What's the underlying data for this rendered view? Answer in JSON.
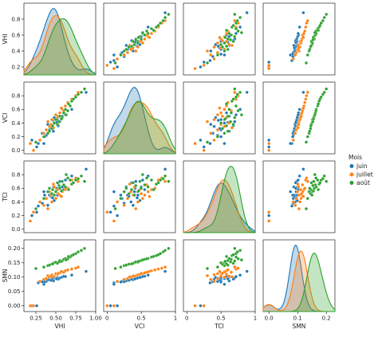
{
  "chart_data": {
    "type": "scatter",
    "subtype": "pairplot",
    "variables": [
      "VHI",
      "VCI",
      "TCI",
      "SMN"
    ],
    "axis_labels": {
      "VHI": "VHI",
      "VCI": "VCI",
      "TCI": "TCI",
      "SMN": "SMN"
    },
    "ranges": {
      "VHI": [
        0.1,
        1.0
      ],
      "VCI": [
        -0.05,
        1.0
      ],
      "TCI": [
        -0.05,
        1.0
      ],
      "SMN": [
        -0.02,
        0.23
      ]
    },
    "y_ticks": {
      "VHI": [
        "0.2",
        "0.4",
        "0.6",
        "0.8"
      ],
      "VCI": [
        "0.0",
        "0.2",
        "0.4",
        "0.6",
        "0.8"
      ],
      "TCI": [
        "0.0",
        "0.2",
        "0.4",
        "0.6",
        "0.8"
      ],
      "SMN": [
        "0.00",
        "0.05",
        "0.10",
        "0.15",
        "0.20"
      ]
    },
    "x_ticks": {
      "VHI": [
        "0.25",
        "0.50",
        "0.75",
        "1.00"
      ],
      "VCI": [
        "0",
        "0.5",
        "1"
      ],
      "TCI": [
        "0",
        "0.5",
        "1"
      ],
      "SMN": [
        "0.0",
        "0.1",
        "0.2"
      ]
    },
    "grid": false,
    "legend_position": "right",
    "legend": {
      "title": "Mois",
      "entries": [
        "juin",
        "juillet",
        "août"
      ]
    },
    "colors": {
      "juin": "#1f77b4",
      "juillet": "#ff7f0e",
      "août": "#2ca02c"
    },
    "series": [
      {
        "name": "juin",
        "points": [
          {
            "VHI": 0.2,
            "VCI": 0.15,
            "TCI": 0.2,
            "SMN": 0.0
          },
          {
            "VHI": 0.28,
            "VCI": 0.1,
            "TCI": 0.34,
            "SMN": 0.08
          },
          {
            "VHI": 0.35,
            "VCI": 0.1,
            "TCI": 0.55,
            "SMN": 0.075
          },
          {
            "VHI": 0.38,
            "VCI": 0.22,
            "TCI": 0.45,
            "SMN": 0.085
          },
          {
            "VHI": 0.42,
            "VCI": 0.3,
            "TCI": 0.5,
            "SMN": 0.09
          },
          {
            "VHI": 0.45,
            "VCI": 0.35,
            "TCI": 0.4,
            "SMN": 0.092
          },
          {
            "VHI": 0.47,
            "VCI": 0.28,
            "TCI": 0.62,
            "SMN": 0.087
          },
          {
            "VHI": 0.5,
            "VCI": 0.4,
            "TCI": 0.55,
            "SMN": 0.095
          },
          {
            "VHI": 0.52,
            "VCI": 0.45,
            "TCI": 0.5,
            "SMN": 0.098
          },
          {
            "VHI": 0.55,
            "VCI": 0.42,
            "TCI": 0.7,
            "SMN": 0.097
          },
          {
            "VHI": 0.58,
            "VCI": 0.5,
            "TCI": 0.62,
            "SMN": 0.1
          },
          {
            "VHI": 0.6,
            "VCI": 0.55,
            "TCI": 0.58,
            "SMN": 0.103
          },
          {
            "VHI": 0.4,
            "VCI": 0.38,
            "TCI": 0.35,
            "SMN": 0.091
          },
          {
            "VHI": 0.44,
            "VCI": 0.32,
            "TCI": 0.48,
            "SMN": 0.089
          },
          {
            "VHI": 0.48,
            "VCI": 0.48,
            "TCI": 0.42,
            "SMN": 0.099
          },
          {
            "VHI": 0.53,
            "VCI": 0.36,
            "TCI": 0.68,
            "SMN": 0.093
          },
          {
            "VHI": 0.36,
            "VCI": 0.2,
            "TCI": 0.5,
            "SMN": 0.083
          },
          {
            "VHI": 0.62,
            "VCI": 0.52,
            "TCI": 0.72,
            "SMN": 0.102
          },
          {
            "VHI": 0.46,
            "VCI": 0.44,
            "TCI": 0.46,
            "SMN": 0.096
          },
          {
            "VHI": 0.51,
            "VCI": 0.41,
            "TCI": 0.6,
            "SMN": 0.094
          },
          {
            "VHI": 0.88,
            "VCI": 0.85,
            "TCI": 0.88,
            "SMN": 0.12
          },
          {
            "VHI": 0.7,
            "VCI": 0.6,
            "TCI": 0.78,
            "SMN": 0.107
          },
          {
            "VHI": 0.33,
            "VCI": 0.25,
            "TCI": 0.38,
            "SMN": 0.084
          },
          {
            "VHI": 0.26,
            "VCI": 0.05,
            "TCI": 0.25,
            "SMN": 0.0
          }
        ]
      },
      {
        "name": "juillet",
        "points": [
          {
            "VHI": 0.18,
            "VCI": 0.1,
            "TCI": 0.12,
            "SMN": 0.0
          },
          {
            "VHI": 0.3,
            "VCI": 0.15,
            "TCI": 0.4,
            "SMN": 0.085
          },
          {
            "VHI": 0.35,
            "VCI": 0.25,
            "TCI": 0.35,
            "SMN": 0.092
          },
          {
            "VHI": 0.38,
            "VCI": 0.3,
            "TCI": 0.45,
            "SMN": 0.095
          },
          {
            "VHI": 0.4,
            "VCI": 0.42,
            "TCI": 0.3,
            "SMN": 0.105
          },
          {
            "VHI": 0.42,
            "VCI": 0.35,
            "TCI": 0.55,
            "SMN": 0.1
          },
          {
            "VHI": 0.45,
            "VCI": 0.45,
            "TCI": 0.4,
            "SMN": 0.108
          },
          {
            "VHI": 0.48,
            "VCI": 0.4,
            "TCI": 0.62,
            "SMN": 0.103
          },
          {
            "VHI": 0.5,
            "VCI": 0.52,
            "TCI": 0.45,
            "SMN": 0.112
          },
          {
            "VHI": 0.52,
            "VCI": 0.48,
            "TCI": 0.58,
            "SMN": 0.11
          },
          {
            "VHI": 0.55,
            "VCI": 0.55,
            "TCI": 0.5,
            "SMN": 0.115
          },
          {
            "VHI": 0.58,
            "VCI": 0.6,
            "TCI": 0.55,
            "SMN": 0.118
          },
          {
            "VHI": 0.6,
            "VCI": 0.58,
            "TCI": 0.65,
            "SMN": 0.117
          },
          {
            "VHI": 0.62,
            "VCI": 0.65,
            "TCI": 0.58,
            "SMN": 0.122
          },
          {
            "VHI": 0.65,
            "VCI": 0.7,
            "TCI": 0.6,
            "SMN": 0.125
          },
          {
            "VHI": 0.7,
            "VCI": 0.75,
            "TCI": 0.72,
            "SMN": 0.128
          },
          {
            "VHI": 0.75,
            "VCI": 0.8,
            "TCI": 0.75,
            "SMN": 0.131
          },
          {
            "VHI": 0.78,
            "VCI": 0.85,
            "TCI": 0.7,
            "SMN": 0.135
          },
          {
            "VHI": 0.44,
            "VCI": 0.38,
            "TCI": 0.5,
            "SMN": 0.104
          },
          {
            "VHI": 0.53,
            "VCI": 0.5,
            "TCI": 0.52,
            "SMN": 0.113
          },
          {
            "VHI": 0.57,
            "VCI": 0.62,
            "TCI": 0.48,
            "SMN": 0.12
          },
          {
            "VHI": 0.47,
            "VCI": 0.33,
            "TCI": 0.66,
            "SMN": 0.101
          },
          {
            "VHI": 0.22,
            "VCI": 0.0,
            "TCI": 0.25,
            "SMN": 0.0
          }
        ]
      },
      {
        "name": "août",
        "points": [
          {
            "VHI": 0.25,
            "VCI": 0.12,
            "TCI": 0.3,
            "SMN": 0.13
          },
          {
            "VHI": 0.35,
            "VCI": 0.2,
            "TCI": 0.45,
            "SMN": 0.135
          },
          {
            "VHI": 0.4,
            "VCI": 0.25,
            "TCI": 0.55,
            "SMN": 0.14
          },
          {
            "VHI": 0.45,
            "VCI": 0.32,
            "TCI": 0.52,
            "SMN": 0.145
          },
          {
            "VHI": 0.48,
            "VCI": 0.4,
            "TCI": 0.5,
            "SMN": 0.15
          },
          {
            "VHI": 0.5,
            "VCI": 0.45,
            "TCI": 0.55,
            "SMN": 0.152
          },
          {
            "VHI": 0.52,
            "VCI": 0.38,
            "TCI": 0.68,
            "SMN": 0.148
          },
          {
            "VHI": 0.55,
            "VCI": 0.5,
            "TCI": 0.6,
            "SMN": 0.158
          },
          {
            "VHI": 0.58,
            "VCI": 0.48,
            "TCI": 0.7,
            "SMN": 0.156
          },
          {
            "VHI": 0.6,
            "VCI": 0.55,
            "TCI": 0.65,
            "SMN": 0.162
          },
          {
            "VHI": 0.62,
            "VCI": 0.6,
            "TCI": 0.62,
            "SMN": 0.165
          },
          {
            "VHI": 0.65,
            "VCI": 0.58,
            "TCI": 0.75,
            "SMN": 0.164
          },
          {
            "VHI": 0.68,
            "VCI": 0.65,
            "TCI": 0.72,
            "SMN": 0.17
          },
          {
            "VHI": 0.7,
            "VCI": 0.72,
            "TCI": 0.66,
            "SMN": 0.175
          },
          {
            "VHI": 0.72,
            "VCI": 0.75,
            "TCI": 0.68,
            "SMN": 0.178
          },
          {
            "VHI": 0.75,
            "VCI": 0.78,
            "TCI": 0.72,
            "SMN": 0.182
          },
          {
            "VHI": 0.78,
            "VCI": 0.82,
            "TCI": 0.74,
            "SMN": 0.188
          },
          {
            "VHI": 0.82,
            "VCI": 0.85,
            "TCI": 0.78,
            "SMN": 0.193
          },
          {
            "VHI": 0.54,
            "VCI": 0.42,
            "TCI": 0.64,
            "SMN": 0.153
          },
          {
            "VHI": 0.46,
            "VCI": 0.36,
            "TCI": 0.58,
            "SMN": 0.146
          },
          {
            "VHI": 0.63,
            "VCI": 0.52,
            "TCI": 0.8,
            "SMN": 0.16
          },
          {
            "VHI": 0.57,
            "VCI": 0.46,
            "TCI": 0.56,
            "SMN": 0.155
          },
          {
            "VHI": 0.86,
            "VCI": 0.9,
            "TCI": 0.7,
            "SMN": 0.2
          },
          {
            "VHI": 0.42,
            "VCI": 0.28,
            "TCI": 0.6,
            "SMN": 0.142
          },
          {
            "VHI": 0.66,
            "VCI": 0.68,
            "TCI": 0.58,
            "SMN": 0.172
          }
        ]
      }
    ]
  }
}
